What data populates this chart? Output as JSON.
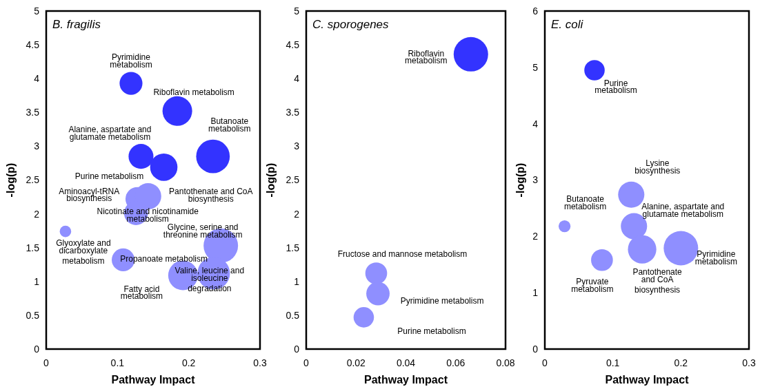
{
  "chart_data": [
    {
      "type": "bubble",
      "title": "B. fragilis",
      "xlabel": "Pathway Impact",
      "ylabel": "-log(p)",
      "xlim": [
        0,
        0.3
      ],
      "xticks": [
        0,
        0.1,
        0.2,
        0.3
      ],
      "ylim": [
        0,
        5
      ],
      "yticks": [
        0,
        0.5,
        1,
        1.5,
        2,
        2.5,
        3,
        3.5,
        4,
        4.5,
        5
      ],
      "grid": false,
      "series": [
        {
          "color": "#3333ff",
          "x": [
            0.119,
            0.184,
            0.133,
            0.165,
            0.234
          ],
          "values": [
            3.93,
            3.52,
            2.85,
            2.69,
            2.85
          ],
          "sizes": [
            0.44,
            0.74,
            0.52,
            0.63,
            0.95
          ]
        },
        {
          "color": "#8f8fff",
          "x": [
            0.128,
            0.143,
            0.126,
            0.027,
            0.108,
            0.245,
            0.192,
            0.235
          ],
          "values": [
            2.22,
            2.26,
            2.01,
            1.74,
            1.32,
            1.53,
            1.09,
            1.12
          ],
          "sizes": [
            0.48,
            0.58,
            0.48,
            0.11,
            0.44,
            1,
            0.74,
            0.89
          ]
        }
      ],
      "annotations": [
        {
          "text": "Pyrimidine\nmetabolism",
          "x": 0.119,
          "y": 3.93
        },
        {
          "text": "Riboflavin metabolism",
          "x": 0.184,
          "y": 3.52
        },
        {
          "text": "Butanoate\nmetabolism",
          "x": 0.234,
          "y": 2.85
        },
        {
          "text": "Alanine, aspartate and\nglutamate metabolism",
          "x": 0.133,
          "y": 2.85
        },
        {
          "text": "Purine metabolism",
          "x": 0.165,
          "y": 2.69
        },
        {
          "text": "Aminoacyl-tRNA\nbiosynthesis",
          "x": 0.128,
          "y": 2.22
        },
        {
          "text": "Pantothenate and CoA\nbiosynthesis",
          "x": 0.143,
          "y": 2.26
        },
        {
          "text": "Nicotinate and nicotinamide\nmetabolism",
          "x": 0.126,
          "y": 2.01
        },
        {
          "text": "Glyoxylate and\ndicarboxylate\nmetabolism",
          "x": 0.027,
          "y": 1.74
        },
        {
          "text": "Propanoate metabolism",
          "x": 0.108,
          "y": 1.32
        },
        {
          "text": "Glycine, serine and\nthreonine metabolism",
          "x": 0.245,
          "y": 1.53
        },
        {
          "text": "Valine, leucine and\nisoleucine\ndegradation",
          "x": 0.235,
          "y": 1.12
        },
        {
          "text": "Fatty acid\nmetabolism",
          "x": 0.192,
          "y": 1.09
        }
      ]
    },
    {
      "type": "bubble",
      "title": "C. sporogenes",
      "xlabel": "Pathway Impact",
      "ylabel": "-log(p)",
      "xlim": [
        0,
        0.08
      ],
      "xticks": [
        0,
        0.02,
        0.04,
        0.06,
        0.08
      ],
      "ylim": [
        0,
        5
      ],
      "yticks": [
        0,
        0.5,
        1,
        1.5,
        2,
        2.5,
        3,
        3.5,
        4,
        4.5,
        5
      ],
      "grid": false,
      "series": [
        {
          "color": "#3333ff",
          "x": [
            0.0661
          ],
          "values": [
            4.36
          ],
          "sizes": [
            1
          ]
        },
        {
          "color": "#8f8fff",
          "x": [
            0.0281,
            0.0288,
            0.0231
          ],
          "values": [
            1.12,
            0.82,
            0.47
          ],
          "sizes": [
            0.4,
            0.46,
            0.35
          ]
        }
      ],
      "annotations": [
        {
          "text": "Riboflavin\nmetabolism",
          "x": 0.0661,
          "y": 4.36
        },
        {
          "text": "Fructose and mannose metabolism",
          "x": 0.0281,
          "y": 1.12
        },
        {
          "text": "Pyrimidine metabolism",
          "x": 0.0288,
          "y": 0.82
        },
        "Purine metabolism"
      ]
    },
    {
      "type": "bubble",
      "title": "E. coli",
      "xlabel": "Pathway Impact",
      "ylabel": "-log(p)",
      "xlim": [
        0,
        0.3
      ],
      "xticks": [
        0,
        0.1,
        0.2,
        0.3
      ],
      "ylim": [
        0,
        6
      ],
      "yticks": [
        0,
        1,
        2,
        3,
        4,
        5,
        6
      ],
      "grid": false,
      "series": [
        {
          "color": "#3333ff",
          "x": [
            0.073
          ],
          "values": [
            4.95
          ],
          "sizes": [
            0.35
          ]
        },
        {
          "color": "#8f8fff",
          "x": [
            0.127,
            0.029,
            0.131,
            0.143,
            0.2,
            0.084
          ],
          "values": [
            2.74,
            2.18,
            2.18,
            1.77,
            1.79,
            1.58
          ],
          "sizes": [
            0.58,
            0.12,
            0.58,
            0.68,
            1,
            0.4
          ]
        }
      ],
      "annotations": [
        {
          "text": "Purine\nmetabolism",
          "x": 0.073,
          "y": 4.95
        },
        {
          "text": "Lysine\nbiosynthesis",
          "x": 0.127,
          "y": 2.74
        },
        {
          "text": "Butanoate\nmetabolism",
          "x": 0.029,
          "y": 2.18
        },
        {
          "text": "Alanine, aspartate and\nglutamate metabolism",
          "x": 0.131,
          "y": 2.18
        },
        {
          "text": "Pyrimidine\nmetabolism",
          "x": 0.2,
          "y": 1.79
        },
        {
          "text": "Pantothenate\nand CoA\nbiosynthesis",
          "x": 0.143,
          "y": 1.77
        },
        {
          "text": "Pyruvate\nmetabolism",
          "x": 0.084,
          "y": 1.58
        }
      ]
    }
  ]
}
